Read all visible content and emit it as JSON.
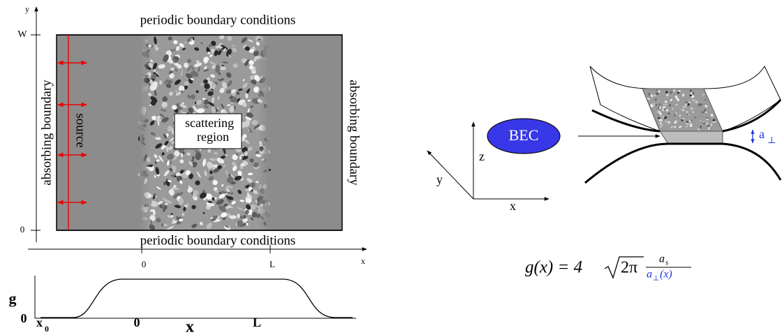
{
  "top_panel": {
    "axis_y_label": "y",
    "tick_w": "W",
    "tick_y0": "0",
    "axis_x_label": "x",
    "tick_x0": "0",
    "tick_l": "L",
    "boundary_top": "periodic boundary conditions",
    "boundary_bottom": "periodic boundary conditions",
    "boundary_left": "absorbing boundary",
    "boundary_right": "absorbing boundary",
    "source": "source",
    "region_line1": "scattering",
    "region_line2": "region"
  },
  "g_panel": {
    "axis_y_label": "g",
    "tick_y0": "0",
    "tick_x0": "x",
    "tick_x0_sub": "0",
    "tick_0": "0",
    "axis_x_label": "x",
    "tick_l": "L"
  },
  "setup": {
    "bec": "BEC",
    "axis_z": "z",
    "axis_y": "y",
    "axis_x": "x",
    "width_label": "a",
    "width_label_sub": "⊥"
  },
  "formula": {
    "lhs": "g(x) = 4",
    "radicand": "2π",
    "numerator": "a",
    "numerator_sub": "s",
    "denominator": "a",
    "denominator_sub": "⊥",
    "denominator_tail": "(x)"
  }
}
